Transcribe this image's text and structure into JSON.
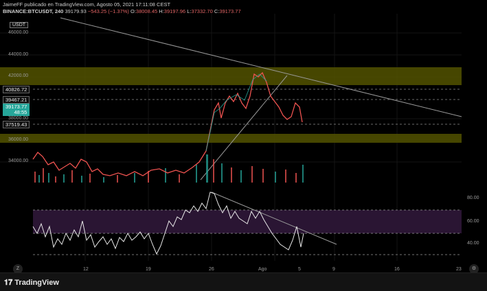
{
  "header": {
    "line1": "JaimeFF publicado en TradingView.com, Agosto 05, 2021 17:11:08 CEST",
    "symbol": "BINANCE:BTCUSDT, 240",
    "price": "39179.93",
    "change": "−543.25 (−1.37%)",
    "open_label": "O:",
    "open": "38008.45",
    "high_label": "H:",
    "high": "39197.96",
    "low_label": "L:",
    "low": "37332.70",
    "close_label": "C:",
    "close": "39173.77"
  },
  "currency": "USDT",
  "price_axis": [
    "46000.00",
    "44000.00",
    "42000.00",
    "38000.00",
    "36000.00",
    "34000.00"
  ],
  "price_boxes": {
    "a": "40826.72",
    "b": "39467.21",
    "current": "39173.77",
    "countdown": "48:55",
    "c": "37519.43"
  },
  "rsi_axis": [
    "80.00",
    "60.00",
    "40.00"
  ],
  "time_axis": [
    "12",
    "19",
    "26",
    "Ago",
    "5",
    "9",
    "16",
    "23"
  ],
  "corner_left": "Z",
  "corner_right": "⚙",
  "logo": "TradingView",
  "colors": {
    "up": "#26a69a",
    "down": "#ef5350",
    "zone": "#5a5a00",
    "rsi_band": "#2a1533",
    "rsi_line": "#e8e8e8"
  }
}
